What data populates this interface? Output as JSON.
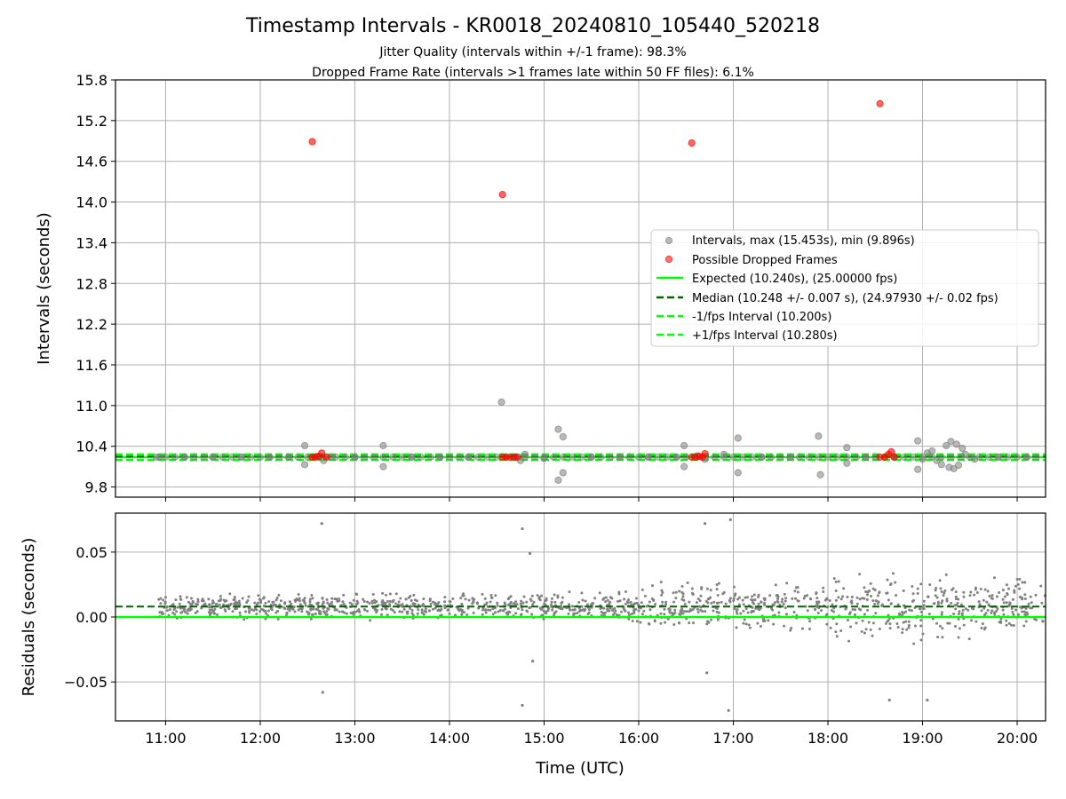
{
  "title": "Timestamp Intervals - KR0018_20240810_105440_520218",
  "subtitle_lines": [
    "Jitter Quality (intervals within +/-1 frame): 98.3%",
    "Dropped Frame Rate (intervals >1 frames late within 50 FF files): 6.1%"
  ],
  "colors": {
    "interval_points": "#808080",
    "dropped_points": "#ff0000",
    "expected_line": "#00ff00",
    "median_line": "#006400",
    "fps_band_lines": "#00ff00",
    "residual_points": "#808080",
    "grid": "#b0b0b0"
  },
  "chart_data": [
    {
      "type": "scatter",
      "panel": "intervals",
      "xlabel": "",
      "ylabel": "Intervals (seconds)",
      "x_unit": "hours (UTC)",
      "xlim": [
        10.47,
        20.3
      ],
      "ylim": [
        9.65,
        15.8
      ],
      "y_ticks": [
        "9.8",
        "10.4",
        "11.0",
        "11.6",
        "12.2",
        "12.8",
        "13.4",
        "14.0",
        "14.6",
        "15.2",
        "15.8"
      ],
      "grid": true,
      "legend_position": "center-right",
      "legend": [
        "Intervals, max (15.453s), min (9.896s)",
        "Possible Dropped Frames",
        "Expected (10.240s), (25.00000 fps)",
        "Median (10.248 +/- 0.007 s), (24.97930 +/- 0.02 fps)",
        "-1/fps Interval (10.200s)",
        "+1/fps Interval (10.280s)"
      ],
      "reference_lines": {
        "expected": 10.24,
        "median": 10.248,
        "minus_1fps": 10.2,
        "plus_1fps": 10.28
      },
      "series": [
        {
          "name": "Intervals, max (15.453s), min (9.896s)",
          "points": [
            [
              10.93,
              10.24
            ],
            [
              11.2,
              10.24
            ],
            [
              11.5,
              10.24
            ],
            [
              11.8,
              10.24
            ],
            [
              12.1,
              10.24
            ],
            [
              12.3,
              10.24
            ],
            [
              12.47,
              10.41
            ],
            [
              12.47,
              10.13
            ],
            [
              12.6,
              10.25
            ],
            [
              12.67,
              10.19
            ],
            [
              12.75,
              10.24
            ],
            [
              13.0,
              10.24
            ],
            [
              13.3,
              10.41
            ],
            [
              13.3,
              10.1
            ],
            [
              13.6,
              10.24
            ],
            [
              13.9,
              10.24
            ],
            [
              14.2,
              10.24
            ],
            [
              14.55,
              11.05
            ],
            [
              14.7,
              10.24
            ],
            [
              14.75,
              10.19
            ],
            [
              14.8,
              10.28
            ],
            [
              15.0,
              10.22
            ],
            [
              15.15,
              10.65
            ],
            [
              15.2,
              10.54
            ],
            [
              15.15,
              9.9
            ],
            [
              15.2,
              10.01
            ],
            [
              15.5,
              10.24
            ],
            [
              15.8,
              10.24
            ],
            [
              16.1,
              10.24
            ],
            [
              16.4,
              10.24
            ],
            [
              16.48,
              10.41
            ],
            [
              16.48,
              10.1
            ],
            [
              16.62,
              10.26
            ],
            [
              16.7,
              10.21
            ],
            [
              16.9,
              10.28
            ],
            [
              17.05,
              10.52
            ],
            [
              17.05,
              10.01
            ],
            [
              17.3,
              10.24
            ],
            [
              17.6,
              10.24
            ],
            [
              17.9,
              10.55
            ],
            [
              17.92,
              9.98
            ],
            [
              18.2,
              10.38
            ],
            [
              18.2,
              10.15
            ],
            [
              18.4,
              10.24
            ],
            [
              18.7,
              10.24
            ],
            [
              18.95,
              10.48
            ],
            [
              18.95,
              10.06
            ],
            [
              19.0,
              10.21
            ],
            [
              19.05,
              10.3
            ],
            [
              19.1,
              10.33
            ],
            [
              19.15,
              10.19
            ],
            [
              19.2,
              10.13
            ],
            [
              19.25,
              10.41
            ],
            [
              19.28,
              10.09
            ],
            [
              19.3,
              10.47
            ],
            [
              19.33,
              10.07
            ],
            [
              19.36,
              10.43
            ],
            [
              19.38,
              10.12
            ],
            [
              19.42,
              10.37
            ],
            [
              19.45,
              10.28
            ],
            [
              19.55,
              10.21
            ],
            [
              19.8,
              10.24
            ],
            [
              20.1,
              10.24
            ]
          ]
        },
        {
          "name": "Possible Dropped Frames",
          "points": [
            [
              12.55,
              14.89
            ],
            [
              14.56,
              14.11
            ],
            [
              16.56,
              14.87
            ],
            [
              18.55,
              15.45
            ],
            [
              12.55,
              10.24
            ],
            [
              12.58,
              10.24
            ],
            [
              12.62,
              10.25
            ],
            [
              12.65,
              10.3
            ],
            [
              12.7,
              10.24
            ],
            [
              14.56,
              10.24
            ],
            [
              14.6,
              10.24
            ],
            [
              14.64,
              10.24
            ],
            [
              14.68,
              10.24
            ],
            [
              14.72,
              10.24
            ],
            [
              16.56,
              10.24
            ],
            [
              16.6,
              10.24
            ],
            [
              16.64,
              10.25
            ],
            [
              16.67,
              10.24
            ],
            [
              16.7,
              10.29
            ],
            [
              18.55,
              10.24
            ],
            [
              18.6,
              10.24
            ],
            [
              18.64,
              10.28
            ],
            [
              18.67,
              10.32
            ],
            [
              18.7,
              10.24
            ]
          ]
        }
      ]
    },
    {
      "type": "scatter",
      "panel": "residuals",
      "xlabel": "Time (UTC)",
      "ylabel": "Residuals (seconds)",
      "x_unit": "hours (UTC)",
      "xlim": [
        10.47,
        20.3
      ],
      "ylim": [
        -0.08,
        0.08
      ],
      "y_ticks": [
        "0.05",
        "0.00",
        "−0.05"
      ],
      "x_ticks": [
        "11:00",
        "12:00",
        "13:00",
        "14:00",
        "15:00",
        "16:00",
        "17:00",
        "18:00",
        "19:00",
        "20:00"
      ],
      "grid": true,
      "reference_lines": {
        "zero": 0.0,
        "median_offset": 0.008
      },
      "series": [
        {
          "name": "",
          "outliers": [
            [
              12.65,
              0.072
            ],
            [
              12.66,
              -0.058
            ],
            [
              14.77,
              0.068
            ],
            [
              14.77,
              -0.068
            ],
            [
              14.85,
              0.049
            ],
            [
              14.88,
              -0.034
            ],
            [
              16.7,
              0.072
            ],
            [
              16.72,
              -0.043
            ],
            [
              16.95,
              -0.072
            ],
            [
              16.97,
              0.075
            ],
            [
              18.65,
              -0.064
            ],
            [
              19.05,
              -0.064
            ]
          ]
        }
      ]
    }
  ]
}
